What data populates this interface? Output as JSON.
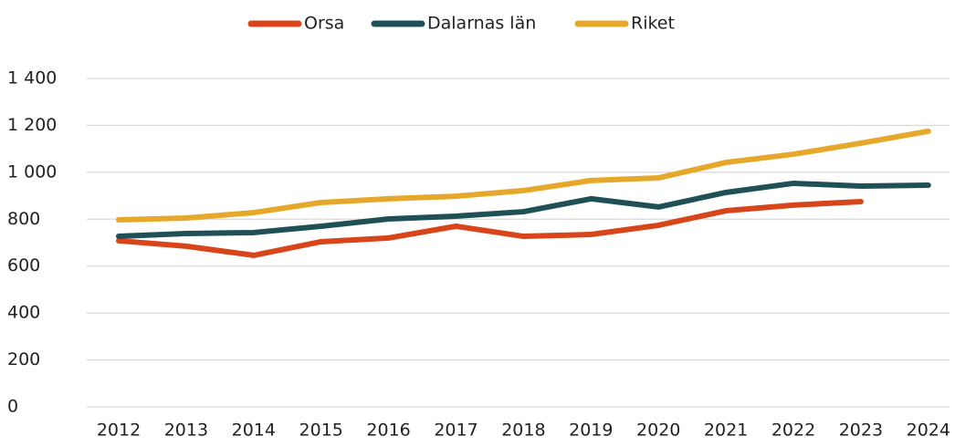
{
  "chart_data": {
    "type": "line",
    "categories": [
      "2012",
      "2013",
      "2014",
      "2015",
      "2016",
      "2017",
      "2018",
      "2019",
      "2020",
      "2021",
      "2022",
      "2023",
      "2024"
    ],
    "series": [
      {
        "name": "Orsa",
        "color": "#d9451a",
        "values": [
          708,
          685,
          646,
          704,
          720,
          770,
          727,
          735,
          774,
          836,
          860,
          875,
          null
        ]
      },
      {
        "name": "Dalarnas län",
        "color": "#1f5056",
        "values": [
          727,
          739,
          743,
          770,
          801,
          813,
          832,
          887,
          852,
          914,
          953,
          941,
          945
        ]
      },
      {
        "name": "Riket",
        "color": "#e6a82a",
        "values": [
          797,
          805,
          828,
          871,
          887,
          898,
          922,
          965,
          976,
          1042,
          1077,
          1124,
          1175
        ]
      }
    ],
    "ylim": [
      0,
      1400
    ],
    "yticks": [
      0,
      200,
      400,
      600,
      800,
      {
        "value": 1000,
        "label": "1 000"
      },
      {
        "value": 1200,
        "label": "1 200"
      },
      {
        "value": 1400,
        "label": "1 400"
      }
    ],
    "grid": true,
    "legend": "top"
  }
}
